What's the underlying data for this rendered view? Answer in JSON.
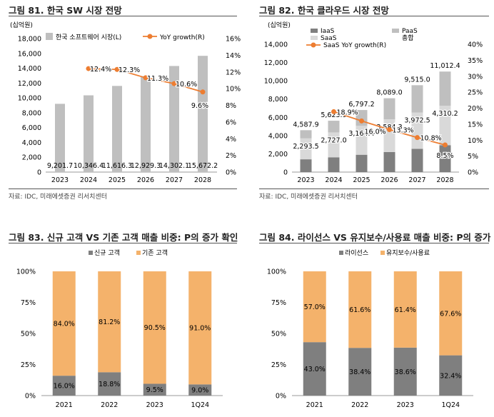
{
  "chart_data": [
    {
      "id": "c1",
      "type": "bar+line",
      "title": "그림 81. 한국 SW 시장 전망",
      "unit_label": "(십억원)",
      "source": "자료: IDC, 미래에셋증권 리서치센터",
      "categories": [
        "2023",
        "2024",
        "2025",
        "2026",
        "2027",
        "2028"
      ],
      "series": [
        {
          "name": "한국 소프트웨어 시장(L)",
          "kind": "bar",
          "axis": "left",
          "color": "#bfbfbf",
          "values": [
            9201.7,
            10346.4,
            11616.3,
            12929.3,
            14302.1,
            15672.2
          ],
          "labels": [
            "9,201.7",
            "10,346.4",
            "11,616.3",
            "12,929.3",
            "14,302.1",
            "15,672.2"
          ]
        },
        {
          "name": "YoY growth(R)",
          "kind": "line",
          "axis": "right",
          "color": "#ed7d31",
          "values": [
            null,
            12.4,
            12.3,
            11.3,
            10.6,
            9.6
          ],
          "labels": [
            "",
            "12.4%",
            "12.3%",
            "11.3%",
            "10.6%",
            "9.6%"
          ]
        }
      ],
      "y_left": {
        "min": 0,
        "max": 18000,
        "step": 2000,
        "ticks": [
          "0",
          "2,000",
          "4,000",
          "6,000",
          "8,000",
          "10,000",
          "12,000",
          "14,000",
          "16,000",
          "18,000"
        ]
      },
      "y_right": {
        "min": 0,
        "max": 16,
        "step": 2,
        "ticks": [
          "0%",
          "2%",
          "4%",
          "6%",
          "8%",
          "10%",
          "12%",
          "14%",
          "16%"
        ]
      },
      "legend": "top"
    },
    {
      "id": "c2",
      "type": "stacked-bar+line",
      "title": "그림 82. 한국 클라우드 시장 전망",
      "unit_label": "(십억원)",
      "source": "자료: IDC, 미래에셋증권 리서치센터",
      "categories": [
        "2023",
        "2024",
        "2025",
        "2026",
        "2027",
        "2028"
      ],
      "series": [
        {
          "name": "IaaS",
          "kind": "bar",
          "color": "#7f7f7f",
          "values": [
            1400,
            1620,
            1900,
            2200,
            2550,
            2950
          ]
        },
        {
          "name": "SaaS",
          "kind": "bar",
          "color": "#d9d9d9",
          "values": [
            2293.5,
            2727.0,
            3164.4,
            3584.3,
            3972.5,
            4310.2
          ],
          "labels": [
            "2,293.5",
            "2,727.0",
            "3,164.4",
            "3,584.3",
            "3,972.5",
            "4,310.2"
          ]
        },
        {
          "name": "PaaS",
          "kind": "bar",
          "color": "#bfbfbf",
          "values": [
            894.4,
            1278.8,
            1732.8,
            2304.7,
            2992.5,
            3752.2
          ]
        },
        {
          "name": "SaaS YoY growth(R)",
          "kind": "line",
          "axis": "right",
          "color": "#ed7d31",
          "values": [
            null,
            18.9,
            16.0,
            13.3,
            10.8,
            8.5
          ],
          "labels": [
            "",
            "18.9%",
            "16.0%",
            "13.3%",
            "10.8%",
            "8.5%"
          ]
        }
      ],
      "total_label": "총합",
      "totals": [
        4587.9,
        5625.9,
        6797.2,
        8089.0,
        9515.0,
        11012.4
      ],
      "total_labels": [
        "4,587.9",
        "5,625.9",
        "6,797.2",
        "8,089.0",
        "9,515.0",
        "11,012.4"
      ],
      "y_left": {
        "min": 0,
        "max": 14000,
        "step": 2000,
        "ticks": [
          "0",
          "2,000",
          "4,000",
          "6,000",
          "8,000",
          "10,000",
          "12,000",
          "14,000"
        ]
      },
      "y_right": {
        "min": 0,
        "max": 40,
        "step": 5,
        "ticks": [
          "0%",
          "5%",
          "10%",
          "15%",
          "20%",
          "25%",
          "30%",
          "35%",
          "40%"
        ]
      },
      "legend": "top"
    },
    {
      "id": "c3",
      "type": "stacked-bar-100",
      "title": "그림 83. 신규 고객 VS 기존 고객 매출 비중: P의 증가 확인",
      "categories": [
        "2021",
        "2022",
        "2023",
        "1Q24"
      ],
      "series": [
        {
          "name": "신규 고객",
          "color": "#7f7f7f",
          "values": [
            16.0,
            18.8,
            9.5,
            9.0
          ],
          "labels": [
            "16.0%",
            "18.8%",
            "9.5%",
            "9.0%"
          ]
        },
        {
          "name": "기존 고객",
          "color": "#f4b26b",
          "values": [
            84.0,
            81.2,
            90.5,
            91.0
          ],
          "labels": [
            "84.0%",
            "81.2%",
            "90.5%",
            "91.0%"
          ]
        }
      ],
      "y_left": {
        "min": 0,
        "max": 100,
        "ticks": [
          "0%",
          "25%",
          "50%",
          "75%",
          "100%"
        ]
      },
      "legend": "top"
    },
    {
      "id": "c4",
      "type": "stacked-bar-100",
      "title": "그림 84. 라이선스 VS 유지보수/사용료 매출 비중: P의 증가 확인",
      "categories": [
        "2021",
        "2022",
        "2023",
        "1Q24"
      ],
      "series": [
        {
          "name": "라이선스",
          "color": "#7f7f7f",
          "values": [
            43.0,
            38.4,
            38.6,
            32.4
          ],
          "labels": [
            "43.0%",
            "38.4%",
            "38.6%",
            "32.4%"
          ]
        },
        {
          "name": "유지보수/사용료",
          "color": "#f4b26b",
          "values": [
            57.0,
            61.6,
            61.4,
            67.6
          ],
          "labels": [
            "57.0%",
            "61.6%",
            "61.4%",
            "67.6%"
          ]
        }
      ],
      "y_left": {
        "min": 0,
        "max": 100,
        "ticks": [
          "0%",
          "25%",
          "50%",
          "75%",
          "100%"
        ]
      },
      "legend": "top"
    }
  ]
}
